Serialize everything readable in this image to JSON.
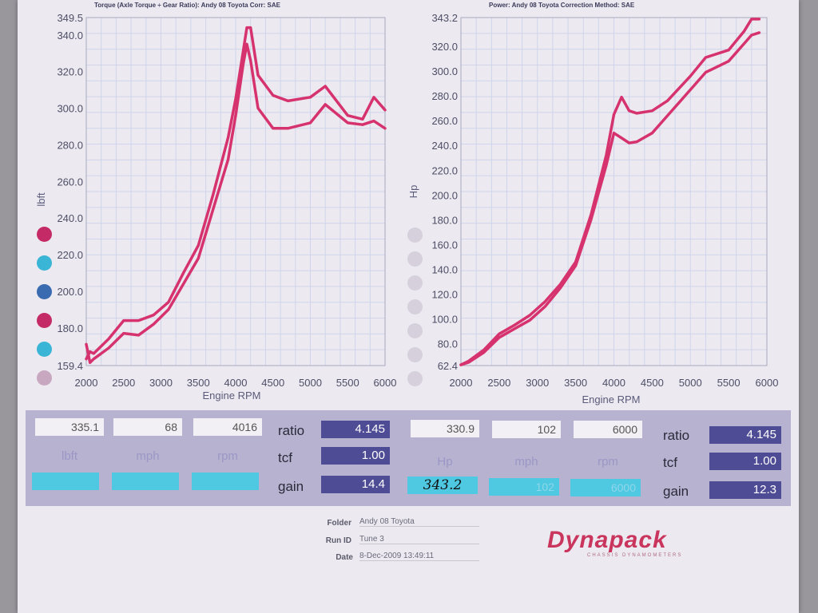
{
  "header": {
    "left_title": "Torque (Axle Torque ÷ Gear Ratio): Andy 08 Toyota    Corr: SAE",
    "right_title": "Power: Andy 08 Toyota      Correction Method: SAE"
  },
  "chart_data": [
    {
      "type": "line",
      "ylabel": "lbft",
      "xlabel": "Engine RPM",
      "xlim": [
        2000,
        6000
      ],
      "ylim": [
        159.4,
        349.5
      ],
      "x_ticks": [
        "2000",
        "2500",
        "3000",
        "3500",
        "4000",
        "4500",
        "5000",
        "5500",
        "6000"
      ],
      "y_ticks": [
        "349.5",
        "340.0",
        "320.0",
        "300.0",
        "280.0",
        "260.0",
        "240.0",
        "220.0",
        "200.0",
        "180.0",
        "159.4"
      ],
      "series": [
        {
          "x": [
            2000,
            2050,
            2100,
            2300,
            2500,
            2700,
            2900,
            3100,
            3300,
            3500,
            3700,
            3900,
            4000,
            4100,
            4150,
            4200,
            4300,
            4500,
            4700,
            5000,
            5200,
            5500,
            5700,
            5850,
            6000
          ],
          "y": [
            163,
            167,
            166,
            174,
            184,
            184,
            187,
            194,
            210,
            225,
            253,
            284,
            305,
            331,
            344,
            344,
            318,
            307,
            304,
            306,
            312,
            296,
            294,
            306,
            299
          ]
        },
        {
          "x": [
            2000,
            2050,
            2100,
            2300,
            2500,
            2700,
            2900,
            3100,
            3300,
            3500,
            3700,
            3900,
            4000,
            4100,
            4150,
            4200,
            4300,
            4500,
            4700,
            5000,
            5200,
            5500,
            5700,
            5850,
            6000
          ],
          "y": [
            171,
            161,
            163,
            169,
            177,
            176,
            182,
            190,
            204,
            218,
            245,
            272,
            296,
            324,
            335,
            326,
            300,
            289,
            289,
            292,
            302,
            292,
            291,
            293,
            289
          ]
        }
      ]
    },
    {
      "type": "line",
      "ylabel": "Hp",
      "xlabel": "Engine RPM",
      "xlim": [
        2000,
        6000
      ],
      "ylim": [
        62.4,
        343.2
      ],
      "x_ticks": [
        "2000",
        "2500",
        "3000",
        "3500",
        "4000",
        "4500",
        "5000",
        "5500",
        "6000"
      ],
      "y_ticks": [
        "343.2",
        "320.0",
        "300.0",
        "280.0",
        "260.0",
        "240.0",
        "220.0",
        "200.0",
        "180.0",
        "160.0",
        "140.0",
        "120.0",
        "100.0",
        "80.0",
        "62.4"
      ],
      "series": [
        {
          "x": [
            2000,
            2100,
            2300,
            2500,
            2700,
            2900,
            3100,
            3300,
            3500,
            3700,
            3900,
            4000,
            4100,
            4200,
            4300,
            4500,
            4700,
            5000,
            5200,
            5500,
            5700,
            5800,
            5900
          ],
          "y": [
            63,
            66,
            75,
            88,
            95,
            103,
            114,
            128,
            146,
            184,
            232,
            265,
            279,
            268,
            266,
            268,
            276,
            296,
            311,
            317,
            332,
            342,
            342
          ]
        },
        {
          "x": [
            2000,
            2100,
            2300,
            2500,
            2700,
            2900,
            3100,
            3300,
            3500,
            3700,
            3900,
            4000,
            4100,
            4200,
            4300,
            4500,
            4700,
            5000,
            5200,
            5500,
            5700,
            5800,
            5900
          ],
          "y": [
            63,
            65,
            73,
            85,
            92,
            99,
            110,
            125,
            143,
            180,
            224,
            250,
            246,
            242,
            243,
            250,
            264,
            285,
            299,
            308,
            322,
            329,
            331
          ]
        }
      ]
    }
  ],
  "colors": {
    "curve": "#d6336e",
    "grid": "#cfd4ec",
    "cyan": "#4fc8e2",
    "navy": "#4f4c96"
  },
  "legend_dots_left": [
    "#c42a66",
    "#3ab5d6",
    "#3a6ab0",
    "#c42a66",
    "#3ab5d6",
    "#c8a8c0"
  ],
  "legend_dots_right": [
    "#d6d0dc",
    "#d6d0dc",
    "#d6d0dc",
    "#d6d0dc",
    "#d6d0dc",
    "#d6d0dc",
    "#d6d0dc"
  ],
  "left_panel": {
    "top_values": [
      "335.1",
      "68",
      "4016"
    ],
    "units": [
      "lbft",
      "mph",
      "rpm"
    ],
    "bottom_values": [
      "",
      "",
      ""
    ],
    "ratio_label": "ratio",
    "ratio": "4.145",
    "tcf_label": "tcf",
    "tcf": "1.00",
    "gain_label": "gain",
    "gain": "14.4"
  },
  "right_panel": {
    "top_values": [
      "330.9",
      "102",
      "6000"
    ],
    "units": [
      "Hp",
      "mph",
      "rpm"
    ],
    "bottom_values": [
      "343.2",
      "102",
      "6000"
    ],
    "ratio_label": "ratio",
    "ratio": "4.145",
    "tcf_label": "tcf",
    "tcf": "1.00",
    "gain_label": "gain",
    "gain": "12.3"
  },
  "info": {
    "folder_label": "Folder",
    "folder": "Andy 08 Toyota",
    "runid_label": "Run ID",
    "runid": "Tune 3",
    "date_label": "Date",
    "date": "8-Dec-2009 13:49:11"
  },
  "logo": {
    "name": "Dynapack",
    "tagline": "CHASSIS DYNAMOMETERS"
  }
}
